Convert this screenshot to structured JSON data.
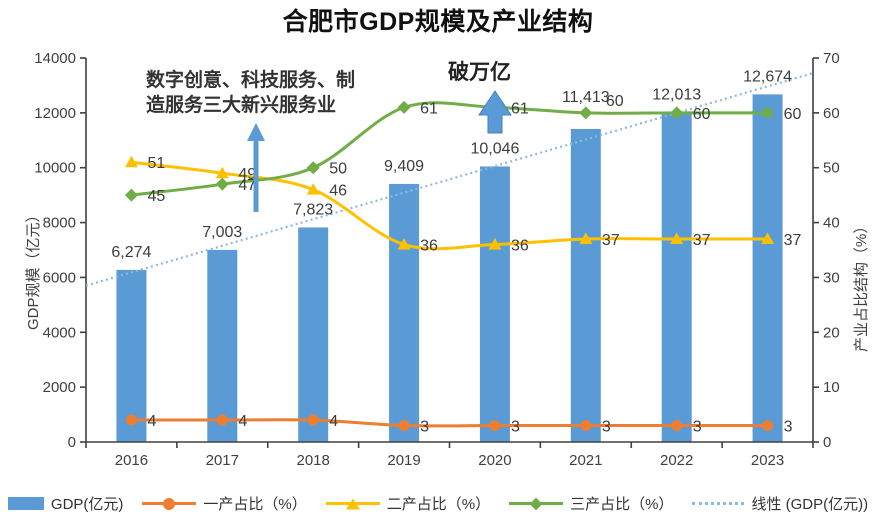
{
  "title": "合肥市GDP规模及产业结构",
  "left_axis": {
    "title": "GDP规模（亿元）",
    "min": 0,
    "max": 14000,
    "step": 2000
  },
  "right_axis": {
    "title": "产业占比结构（%）",
    "min": 0,
    "max": 70,
    "step": 10
  },
  "annotations": {
    "services": {
      "line1": "数字创意、科技服务、制",
      "line2": "造服务三大新兴服务业"
    },
    "trillion": "破万亿"
  },
  "legend": {
    "items": [
      {
        "label": "GDP(亿元)"
      },
      {
        "label": "一产占比（%）"
      },
      {
        "label": "二产占比（%）"
      },
      {
        "label": "三产占比（%）"
      },
      {
        "label": "线性 (GDP(亿元))"
      }
    ]
  },
  "chart_data": {
    "type": "bar+line combo",
    "title": "合肥市GDP规模及产业结构",
    "categories": [
      "2016",
      "2017",
      "2018",
      "2019",
      "2020",
      "2021",
      "2022",
      "2023"
    ],
    "ylabel_left": "GDP规模（亿元）",
    "ylabel_right": "产业占比结构（%）",
    "ylim_left": [
      0,
      14000
    ],
    "ylim_right": [
      0,
      70
    ],
    "grid": false,
    "legend_position": "bottom",
    "bar_series": {
      "name": "GDP(亿元)",
      "axis": "left",
      "color": "#5B9BD5",
      "values": [
        6274,
        7003,
        7823,
        9409,
        10046,
        11413,
        12013,
        12674
      ]
    },
    "line_series": [
      {
        "name": "一产占比（%）",
        "axis": "right",
        "marker": "circle",
        "color": "#ED7D31",
        "values": [
          4,
          4,
          4,
          3,
          3,
          3,
          3,
          3
        ]
      },
      {
        "name": "二产占比（%）",
        "axis": "right",
        "marker": "triangle",
        "color": "#FFC000",
        "values": [
          51,
          49,
          46,
          36,
          36,
          37,
          37,
          37
        ]
      },
      {
        "name": "三产占比（%）",
        "axis": "right",
        "marker": "diamond",
        "color": "#70AD47",
        "values": [
          45,
          47,
          50,
          61,
          61,
          60,
          60,
          60
        ]
      }
    ],
    "trendline": {
      "name": "线性 (GDP(亿元))",
      "style": "dotted",
      "color": "#8DB8E2",
      "start_value": 5700,
      "end_value": 13450
    },
    "arrow_color": "#5B9BD5"
  }
}
